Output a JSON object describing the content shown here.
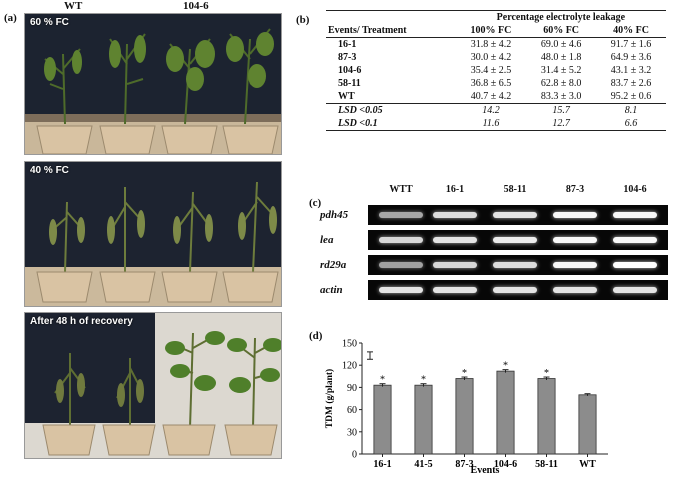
{
  "panel_a": {
    "label": "(a)",
    "col_labels": [
      "WT",
      "104-6"
    ],
    "photos": [
      {
        "caption": "60 % FC"
      },
      {
        "caption": "40 % FC"
      },
      {
        "caption": "After 48 h of recovery"
      }
    ]
  },
  "panel_b": {
    "label": "(b)",
    "group_header": "Percentage electrolyte leakage",
    "row_header": "Events/ Treatment",
    "columns": [
      "100% FC",
      "60% FC",
      "40% FC"
    ],
    "rows": [
      {
        "event": "16-1",
        "values": [
          "31.8 ± 4.2",
          "69.0 ± 4.6",
          "91.7 ± 1.6"
        ]
      },
      {
        "event": "87-3",
        "values": [
          "30.0 ± 4.2",
          "48.0 ± 1.8",
          "64.9 ± 3.6"
        ]
      },
      {
        "event": "104-6",
        "values": [
          "35.4 ± 2.5",
          "31.4 ± 5.2",
          "43.1 ± 3.2"
        ]
      },
      {
        "event": "58-11",
        "values": [
          "36.8 ± 6.5",
          "62.8 ± 8.0",
          "83.7 ± 2.6"
        ]
      },
      {
        "event": "WT",
        "values": [
          "40.7 ± 4.2",
          "83.3 ± 3.0",
          "95.2 ± 0.6"
        ]
      }
    ],
    "stats": [
      {
        "label": "LSD <0.05",
        "values": [
          "14.2",
          "15.7",
          "8.1"
        ]
      },
      {
        "label": "LSD <0.1",
        "values": [
          "11.6",
          "12.7",
          "6.6"
        ]
      }
    ]
  },
  "panel_c": {
    "label": "(c)",
    "lanes": [
      "WTT",
      "16-1",
      "58-11",
      "87-3",
      "104-6"
    ],
    "genes": [
      {
        "name": "pdh45",
        "intensity": [
          0.35,
          0.75,
          0.8,
          0.95,
          0.95
        ]
      },
      {
        "name": "lea",
        "intensity": [
          0.7,
          0.8,
          0.85,
          0.95,
          0.95
        ]
      },
      {
        "name": "rd29a",
        "intensity": [
          0.3,
          0.7,
          0.75,
          0.95,
          1.0
        ]
      },
      {
        "name": "actin",
        "intensity": [
          0.8,
          0.8,
          0.8,
          0.8,
          0.8
        ]
      }
    ]
  },
  "panel_d": {
    "label": "(d)"
  },
  "chart_data": {
    "type": "bar",
    "categories": [
      "16-1",
      "41-5",
      "87-3",
      "104-6",
      "58-11",
      "WT"
    ],
    "values": [
      93,
      93,
      102,
      112,
      102,
      80
    ],
    "errors": [
      2,
      2,
      2,
      2,
      2,
      1.5
    ],
    "significant": [
      true,
      true,
      true,
      true,
      true,
      false
    ],
    "significance_marker": "*",
    "legend_error_mark": true,
    "xlabel": "Events",
    "ylabel": "TDM (g/plant)",
    "ylim": [
      0,
      150
    ],
    "yticks": [
      0,
      30,
      60,
      90,
      120,
      150
    ],
    "bar_color": "#8c8c8c",
    "grid": false
  }
}
